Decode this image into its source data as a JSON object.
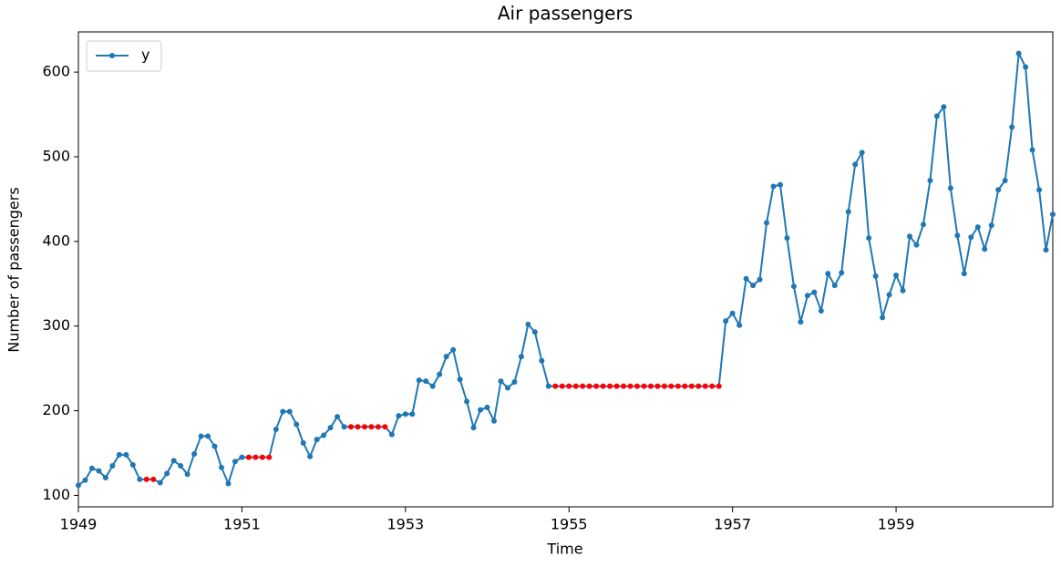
{
  "chart_data": {
    "type": "line",
    "title": "Air passengers",
    "x_label": "Time",
    "y_label": "Number of passengers",
    "x": [
      "1949-01",
      "1949-02",
      "1949-03",
      "1949-04",
      "1949-05",
      "1949-06",
      "1949-07",
      "1949-08",
      "1949-09",
      "1949-10",
      "1949-11",
      "1949-12",
      "1950-01",
      "1950-02",
      "1950-03",
      "1950-04",
      "1950-05",
      "1950-06",
      "1950-07",
      "1950-08",
      "1950-09",
      "1950-10",
      "1950-11",
      "1950-12",
      "1951-01",
      "1951-02",
      "1951-03",
      "1951-04",
      "1951-05",
      "1951-06",
      "1951-07",
      "1951-08",
      "1951-09",
      "1951-10",
      "1951-11",
      "1951-12",
      "1952-01",
      "1952-02",
      "1952-03",
      "1952-04",
      "1952-05",
      "1952-06",
      "1952-07",
      "1952-08",
      "1952-09",
      "1952-10",
      "1952-11",
      "1952-12",
      "1953-01",
      "1953-02",
      "1953-03",
      "1953-04",
      "1953-05",
      "1953-06",
      "1953-07",
      "1953-08",
      "1953-09",
      "1953-10",
      "1953-11",
      "1953-12",
      "1954-01",
      "1954-02",
      "1954-03",
      "1954-04",
      "1954-05",
      "1954-06",
      "1954-07",
      "1954-08",
      "1954-09",
      "1954-10",
      "1954-11",
      "1954-12",
      "1955-01",
      "1955-02",
      "1955-03",
      "1955-04",
      "1955-05",
      "1955-06",
      "1955-07",
      "1955-08",
      "1955-09",
      "1955-10",
      "1955-11",
      "1955-12",
      "1956-01",
      "1956-02",
      "1956-03",
      "1956-04",
      "1956-05",
      "1956-06",
      "1956-07",
      "1956-08",
      "1956-09",
      "1956-10",
      "1956-11",
      "1956-12",
      "1957-01",
      "1957-02",
      "1957-03",
      "1957-04",
      "1957-05",
      "1957-06",
      "1957-07",
      "1957-08",
      "1957-09",
      "1957-10",
      "1957-11",
      "1957-12",
      "1958-01",
      "1958-02",
      "1958-03",
      "1958-04",
      "1958-05",
      "1958-06",
      "1958-07",
      "1958-08",
      "1958-09",
      "1958-10",
      "1958-11",
      "1958-12",
      "1959-01",
      "1959-02",
      "1959-03",
      "1959-04",
      "1959-05",
      "1959-06",
      "1959-07",
      "1959-08",
      "1959-09",
      "1959-10",
      "1959-11",
      "1959-12",
      "1960-01",
      "1960-02",
      "1960-03",
      "1960-04",
      "1960-05",
      "1960-06",
      "1960-07",
      "1960-08",
      "1960-09",
      "1960-10",
      "1960-11",
      "1960-12"
    ],
    "series": [
      {
        "name": "y",
        "color": "#1f77b4",
        "values": [
          112,
          118,
          132,
          129,
          121,
          135,
          148,
          148,
          136,
          119,
          119,
          119,
          115,
          126,
          141,
          135,
          125,
          149,
          170,
          170,
          158,
          133,
          114,
          140,
          145,
          145,
          145,
          145,
          145,
          178,
          199,
          199,
          184,
          162,
          146,
          166,
          171,
          180,
          193,
          181,
          181,
          181,
          181,
          181,
          181,
          181,
          172,
          194,
          196,
          196,
          236,
          235,
          229,
          243,
          264,
          272,
          237,
          211,
          180,
          201,
          204,
          188,
          235,
          227,
          234,
          264,
          302,
          293,
          259,
          229,
          229,
          229,
          229,
          229,
          229,
          229,
          229,
          229,
          229,
          229,
          229,
          229,
          229,
          229,
          229,
          229,
          229,
          229,
          229,
          229,
          229,
          229,
          229,
          229,
          229,
          306,
          315,
          301,
          356,
          348,
          355,
          422,
          465,
          467,
          404,
          347,
          305,
          336,
          340,
          318,
          362,
          348,
          363,
          435,
          491,
          505,
          404,
          359,
          310,
          337,
          360,
          342,
          406,
          396,
          420,
          472,
          548,
          559,
          463,
          407,
          362,
          405,
          417,
          391,
          419,
          461,
          472,
          535,
          622,
          606,
          508,
          461,
          390,
          432
        ]
      }
    ],
    "highlight": {
      "color": "#ff0000",
      "indices": [
        10,
        11,
        25,
        26,
        27,
        28,
        40,
        41,
        42,
        43,
        44,
        45,
        70,
        71,
        72,
        73,
        74,
        75,
        76,
        77,
        78,
        79,
        80,
        81,
        82,
        83,
        84,
        85,
        86,
        87,
        88,
        89,
        90,
        91,
        92,
        93,
        94
      ]
    },
    "xlim": [
      "1949-01",
      "1960-12"
    ],
    "xticks": [
      1949,
      1951,
      1953,
      1955,
      1957,
      1959
    ],
    "ylim": [
      86.5,
      647.5
    ],
    "yticks": [
      100,
      200,
      300,
      400,
      500,
      600
    ],
    "legend": "upper left"
  }
}
